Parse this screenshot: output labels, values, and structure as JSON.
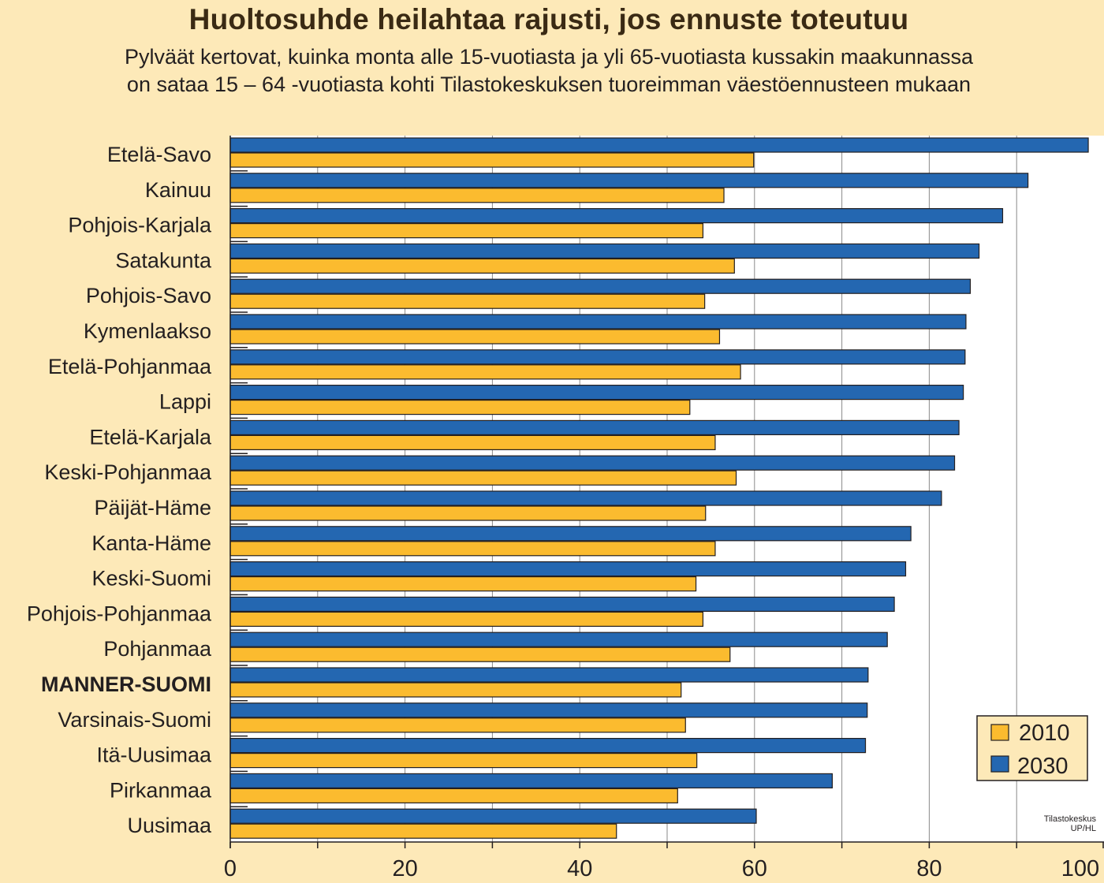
{
  "chart_data": {
    "type": "bar",
    "orientation": "horizontal",
    "title": "Huoltosuhde heilahtaa rajusti, jos ennuste toteutuu",
    "subtitle": "Pylväät  kertovat, kuinka monta alle 15-vuotiasta ja yli 65-vuotiasta kussakin maakunnassa on sataa 15 – 64 -vuotiasta kohti Tilastokeskuksen tuoreimman väestöennusteen mukaan",
    "categories": [
      "Etelä-Savo",
      "Kainuu",
      "Pohjois-Karjala",
      "Satakunta",
      "Pohjois-Savo",
      "Kymenlaakso",
      "Etelä-Pohjanmaa",
      "Lappi",
      "Etelä-Karjala",
      "Keski-Pohjanmaa",
      "Päijät-Häme",
      "Kanta-Häme",
      "Keski-Suomi",
      "Pohjois-Pohjanmaa",
      "Pohjanmaa",
      "MANNER-SUOMI",
      "Varsinais-Suomi",
      "Itä-Uusimaa",
      "Pirkanmaa",
      "Uusimaa"
    ],
    "highlighted_category": "MANNER-SUOMI",
    "series": [
      {
        "name": "2030",
        "color": "#2467b1",
        "values": [
          98.2,
          91.3,
          88.4,
          85.7,
          84.7,
          84.2,
          84.1,
          83.9,
          83.4,
          82.9,
          81.4,
          77.9,
          77.3,
          76.0,
          75.2,
          73.0,
          72.9,
          72.7,
          68.9,
          60.2
        ]
      },
      {
        "name": "2010",
        "color": "#fbbb2f",
        "values": [
          59.9,
          56.5,
          54.1,
          57.7,
          54.3,
          56.0,
          58.4,
          52.6,
          55.5,
          57.9,
          54.4,
          55.5,
          53.3,
          54.1,
          57.2,
          51.6,
          52.1,
          53.4,
          51.2,
          44.2
        ]
      }
    ],
    "xlim": [
      0,
      100
    ],
    "xticks": [
      0,
      20,
      40,
      60,
      80,
      100
    ],
    "xlabel": "",
    "ylabel": "",
    "grid": "vertical",
    "legend": {
      "position": "bottom-right",
      "entries": [
        "2010",
        "2030"
      ]
    },
    "source_lines": [
      "Tilastokeskus",
      "UP/HL"
    ]
  }
}
